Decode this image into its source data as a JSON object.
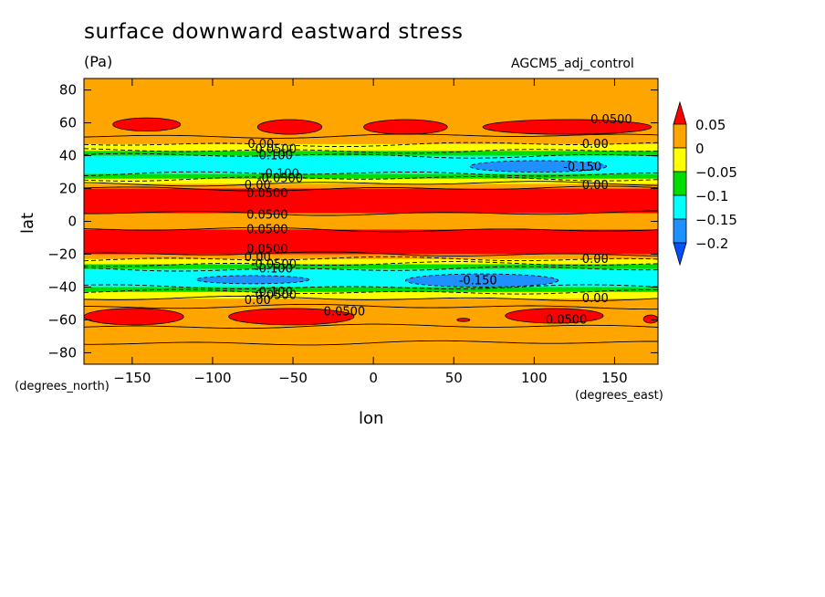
{
  "chart_data": {
    "type": "heatmap",
    "title": "surface downward eastward stress",
    "units": "(Pa)",
    "run_label": "AGCM5_adj_control",
    "xlabel": "lon",
    "ylabel": "lat",
    "x_units": "(degrees_east)",
    "y_units": "(degrees_north)",
    "xlim": [
      -180,
      177
    ],
    "ylim": [
      -87,
      87
    ],
    "x_ticks": [
      -150,
      -100,
      -50,
      0,
      50,
      100,
      150
    ],
    "y_ticks": [
      -80,
      -60,
      -40,
      -20,
      0,
      20,
      40,
      60,
      80
    ],
    "colorbar": {
      "tick_labels": [
        "0.05",
        "0",
        "−0.05",
        "−0.1",
        "−0.15",
        "−0.2"
      ],
      "levels": [
        0.05,
        0,
        -0.05,
        -0.1,
        -0.15,
        -0.2
      ],
      "colors": [
        "#ff0000",
        "#ffa500",
        "#ffff00",
        "#00dd00",
        "#00ffff",
        "#1e90ff",
        "#0050ff"
      ]
    },
    "zonal_bands": [
      {
        "lat_min": -87,
        "lat_max": -74,
        "value": 0.02
      },
      {
        "lat_min": -74,
        "lat_max": -64,
        "value": 0.03
      },
      {
        "lat_min": -64,
        "lat_max": -52,
        "value": 0.04
      },
      {
        "lat_min": -52,
        "lat_max": -47,
        "value": 0.01
      },
      {
        "lat_min": -47,
        "lat_max": -43,
        "value": -0.03
      },
      {
        "lat_min": -43,
        "lat_max": -40,
        "value": -0.08
      },
      {
        "lat_min": -40,
        "lat_max": -29,
        "value": -0.12
      },
      {
        "lat_min": -29,
        "lat_max": -26,
        "value": -0.08
      },
      {
        "lat_min": -26,
        "lat_max": -23,
        "value": -0.03
      },
      {
        "lat_min": -23,
        "lat_max": -20,
        "value": 0.02
      },
      {
        "lat_min": -20,
        "lat_max": -5,
        "value": 0.06
      },
      {
        "lat_min": -5,
        "lat_max": 5,
        "value": 0.04
      },
      {
        "lat_min": 5,
        "lat_max": 20,
        "value": 0.06
      },
      {
        "lat_min": 20,
        "lat_max": 23,
        "value": 0.02
      },
      {
        "lat_min": 23,
        "lat_max": 26,
        "value": -0.03
      },
      {
        "lat_min": 26,
        "lat_max": 29,
        "value": -0.08
      },
      {
        "lat_min": 29,
        "lat_max": 40,
        "value": -0.12
      },
      {
        "lat_min": 40,
        "lat_max": 43,
        "value": -0.08
      },
      {
        "lat_min": 43,
        "lat_max": 47,
        "value": -0.03
      },
      {
        "lat_min": 47,
        "lat_max": 52,
        "value": 0.01
      },
      {
        "lat_min": 52,
        "lat_max": 87,
        "value": 0.03
      }
    ],
    "patches": [
      {
        "lon_min": -162,
        "lon_max": -120,
        "lat_min": 55,
        "lat_max": 63,
        "value": 0.06
      },
      {
        "lon_min": -72,
        "lon_max": -32,
        "lat_min": 53,
        "lat_max": 62,
        "value": 0.06
      },
      {
        "lon_min": -6,
        "lon_max": 46,
        "lat_min": 53,
        "lat_max": 62,
        "value": 0.06
      },
      {
        "lon_min": 68,
        "lon_max": 173,
        "lat_min": 53,
        "lat_max": 62,
        "value": 0.06
      },
      {
        "lon_min": -180,
        "lon_max": -118,
        "lat_min": -63,
        "lat_max": -53,
        "value": 0.06
      },
      {
        "lon_min": -90,
        "lon_max": -12,
        "lat_min": -63,
        "lat_max": -53,
        "value": 0.06
      },
      {
        "lon_min": 82,
        "lon_max": 143,
        "lat_min": -62,
        "lat_max": -53,
        "value": 0.06
      },
      {
        "lon_min": 168,
        "lon_max": 177,
        "lat_min": -62,
        "lat_max": -57,
        "value": 0.06
      },
      {
        "lon_min": 52,
        "lon_max": 60,
        "lat_min": -61,
        "lat_max": -59,
        "value": 0.06
      },
      {
        "lon_min": 60,
        "lon_max": 145,
        "lat_min": 30,
        "lat_max": 37,
        "value": -0.16
      },
      {
        "lon_min": 20,
        "lon_max": 115,
        "lat_min": -40,
        "lat_max": -32,
        "value": -0.16
      },
      {
        "lon_min": -110,
        "lon_max": -40,
        "lat_min": -38,
        "lat_max": -33,
        "value": -0.16
      }
    ],
    "contour_labels": [
      {
        "text": "0.0500",
        "lon": 148,
        "lat": 62
      },
      {
        "text": "0.00",
        "lon": 138,
        "lat": 47
      },
      {
        "text": "-0.150",
        "lon": 130,
        "lat": 33
      },
      {
        "text": "0.00",
        "lon": 138,
        "lat": 22
      },
      {
        "text": "0.00",
        "lon": -70,
        "lat": 47
      },
      {
        "text": "-0.0500",
        "lon": -62,
        "lat": 44
      },
      {
        "text": "-0.100",
        "lon": -62,
        "lat": 40
      },
      {
        "text": "-0.100",
        "lon": -58,
        "lat": 29
      },
      {
        "text": "-0.0500",
        "lon": -58,
        "lat": 26
      },
      {
        "text": "0.00",
        "lon": -72,
        "lat": 22
      },
      {
        "text": "0.0500",
        "lon": -66,
        "lat": 17
      },
      {
        "text": "0.0500",
        "lon": -66,
        "lat": 4
      },
      {
        "text": "0.0500",
        "lon": -66,
        "lat": -5
      },
      {
        "text": "0.0500",
        "lon": -66,
        "lat": -17
      },
      {
        "text": "0.00",
        "lon": -72,
        "lat": -22
      },
      {
        "text": "-0.0500",
        "lon": -62,
        "lat": -26
      },
      {
        "text": "-0.100",
        "lon": -62,
        "lat": -29
      },
      {
        "text": "-0.100",
        "lon": -62,
        "lat": -43
      },
      {
        "text": "-0.0500",
        "lon": -62,
        "lat": -45
      },
      {
        "text": "0.00",
        "lon": -72,
        "lat": -48
      },
      {
        "text": "-0.150",
        "lon": 65,
        "lat": -36
      },
      {
        "text": "0.00",
        "lon": 138,
        "lat": -23
      },
      {
        "text": "0.00",
        "lon": 138,
        "lat": -47
      },
      {
        "text": "0.0500",
        "lon": -18,
        "lat": -55
      },
      {
        "text": "0.0500",
        "lon": 120,
        "lat": -60
      }
    ]
  }
}
